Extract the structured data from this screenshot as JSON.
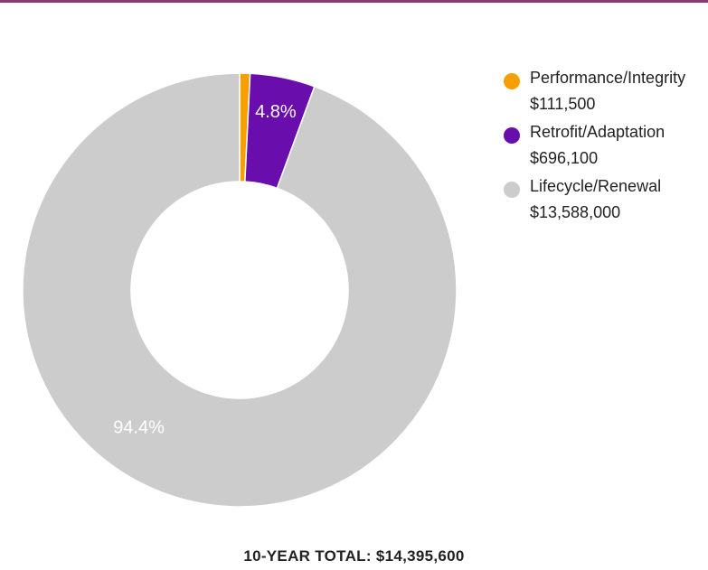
{
  "theme": {
    "top_rule_color": "#8a3b6e"
  },
  "chart_data": {
    "type": "pie",
    "donut": true,
    "series": [
      {
        "name": "Performance/Integrity",
        "amount": "$111,500",
        "value": 111500,
        "color": "#f5a000",
        "percent_label": ""
      },
      {
        "name": "Retrofit/Adaptation",
        "amount": "$696,100",
        "value": 696100,
        "color": "#6a0dad",
        "percent_label": "4.8%"
      },
      {
        "name": "Lifecycle/Renewal",
        "amount": "$13,588,000",
        "value": 13588000,
        "color": "#cccccc",
        "percent_label": "94.4%"
      }
    ],
    "legend_position": "right",
    "total_label": "10-YEAR TOTAL: $14,395,600"
  }
}
